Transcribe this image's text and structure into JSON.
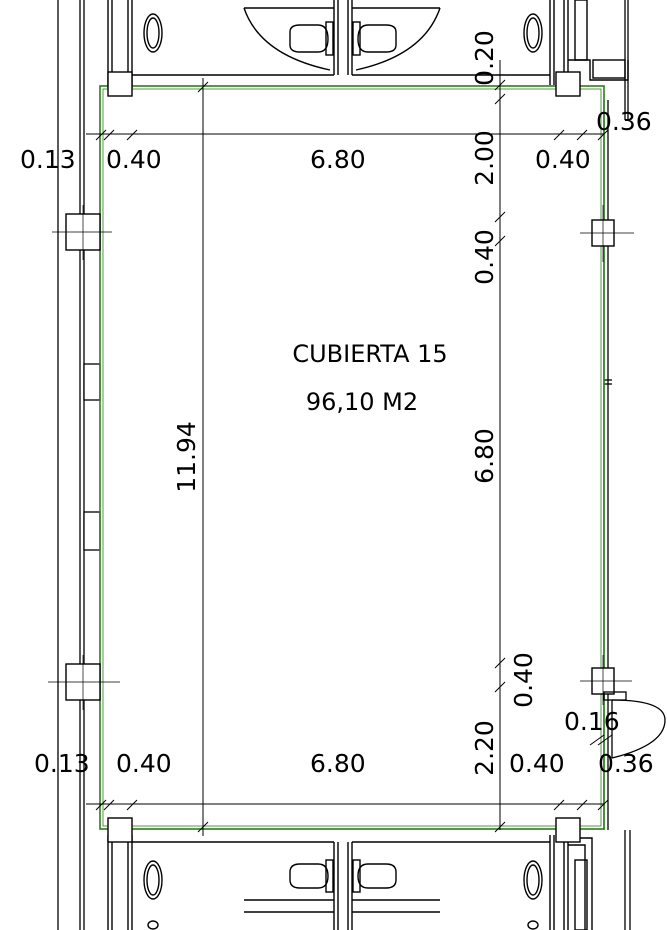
{
  "room": {
    "name": "CUBIERTA 15",
    "area": "96,10 M2"
  },
  "dimensions": {
    "top": {
      "left_offset": "0.13",
      "left_wall": "0.40",
      "width": "6.80",
      "right_wall": "0.40",
      "right_offset": "0.36"
    },
    "bottom": {
      "left_offset": "0.13",
      "left_wall": "0.40",
      "width": "6.80",
      "right_wall": "0.40",
      "right_offset": "0.36"
    },
    "left_height": "11.94",
    "right_chain": [
      "0.20",
      "2.00",
      "0.40",
      "6.80",
      "0.40",
      "2.20"
    ],
    "door_offset": "0.16"
  },
  "colors": {
    "lines": "#000000",
    "room_outline": "#2e7d1e"
  }
}
